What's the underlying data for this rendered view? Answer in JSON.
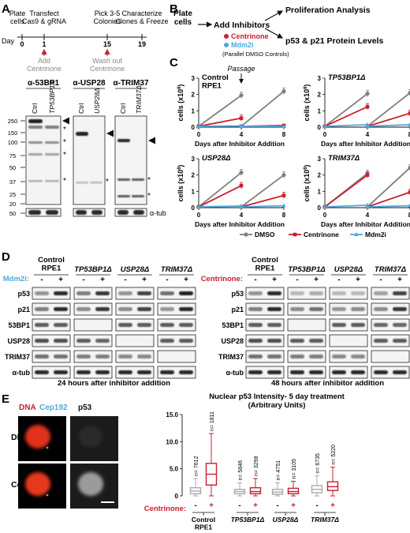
{
  "panels": {
    "A": {
      "letter": "A",
      "day_label": "Day",
      "timeline": [
        {
          "day": "0",
          "label": "Plate\ncells"
        },
        {
          "day": "1",
          "label": "Transfect\nCas9 & gRNA"
        },
        {
          "day": "15",
          "label": "Pick 3-5\nColonies"
        },
        {
          "day": "19",
          "label": "Characterize\nClones & Freeze"
        }
      ],
      "events": [
        {
          "day": "1",
          "label": "Add\nCentrinone"
        },
        {
          "day": "15",
          "label": "Wash out\nCentrinone"
        }
      ],
      "blots": [
        {
          "title": "α-53BP1",
          "lanes": [
            "Ctrl",
            "TP53BP1Δ"
          ]
        },
        {
          "title": "α-USP28",
          "lanes": [
            "Ctrl",
            "USP28Δ"
          ]
        },
        {
          "title": "α-TRIM37",
          "lanes": [
            "Ctrl",
            "TRIM37Δ"
          ]
        }
      ],
      "markers": [
        "250",
        "150",
        "100",
        "75",
        "50",
        "37",
        "25",
        "20",
        "50"
      ],
      "loading_label": "α-tub",
      "star": "*"
    },
    "B": {
      "letter": "B",
      "start": "Plate\ncells",
      "step": "Add Inhibitors",
      "legend": [
        {
          "label": "Centrinone",
          "color": "#c8202f"
        },
        {
          "label": "Mdm2i",
          "color": "#4fa8de"
        }
      ],
      "controls": "(Parallel DMSO Controls)",
      "outcomes": [
        "Proliferation Analysis",
        "p53 & p21 Protein Levels"
      ]
    },
    "C": {
      "letter": "C",
      "ylabel": "cells (x10",
      "ylabel_exp": "6",
      "ylabel_end": ")",
      "xlabel": "Days after Inhibitor Addition",
      "passage": "Passage",
      "legend": [
        {
          "label": "DMSO",
          "color": "#7f7f7f"
        },
        {
          "label": "Centrinone",
          "color": "#c8202f"
        },
        {
          "label": "Mdm2i",
          "color": "#4fa8de"
        }
      ]
    },
    "D": {
      "letter": "D",
      "left": {
        "treatment": "Mdm2i:",
        "treatment_color": "#4fa8de",
        "groups": [
          {
            "name": "Control\nRPE1",
            "italic": false
          },
          {
            "name": "TP53BP1Δ",
            "italic": true
          },
          {
            "name": "USP28Δ",
            "italic": true
          },
          {
            "name": "TRIM37Δ",
            "italic": true
          }
        ],
        "rows": [
          "p53",
          "p21",
          "53BP1",
          "USP28",
          "TRIM37",
          "α-tub"
        ],
        "caption": "24 hours after inhibitor addition"
      },
      "right": {
        "treatment": "Centrinone:",
        "treatment_color": "#c8202f",
        "groups": [
          {
            "name": "Control\nRPE1",
            "italic": false
          },
          {
            "name": "TP53BP1Δ",
            "italic": true
          },
          {
            "name": "USP28Δ",
            "italic": true
          },
          {
            "name": "TRIM37Δ",
            "italic": true
          }
        ],
        "rows": [
          "p53",
          "p21",
          "53BP1",
          "USP28",
          "TRIM37",
          "α-tub"
        ],
        "caption": "48 hours after inhibitor addition"
      },
      "signs": [
        "-",
        "+"
      ]
    },
    "E": {
      "letter": "E",
      "img_headers": [
        {
          "text": "DNA",
          "color": "#c8202f"
        },
        {
          "text": "Cep192",
          "color": "#4fa8de"
        },
        {
          "text": "p53",
          "color": "#111111"
        }
      ],
      "rows": [
        "DMSO",
        "Centrinone"
      ],
      "plot_title": "Nuclear p53 Intensity- 5 day treatment",
      "plot_subtitle": "(Arbitrary Units)",
      "treatment": "Centrinone:",
      "groups": [
        "Control\nRPE1",
        "TP53BP1Δ",
        "USP28Δ",
        "TRIM37Δ"
      ],
      "y_ticks": [
        "0",
        "5.0",
        "10.0",
        "15.0"
      ]
    }
  },
  "chart_data": [
    {
      "type": "line",
      "panel": "C",
      "title": "Control\nRPE1",
      "xlabel": "Days after Inhibitor Addition",
      "ylabel": "cells (x10^6)",
      "xlim": [
        0,
        8
      ],
      "ylim": [
        0,
        3
      ],
      "x_ticks": [
        0,
        4,
        8
      ],
      "y_ticks": [
        0,
        1,
        2,
        3
      ],
      "series": [
        {
          "name": "DMSO",
          "x": [
            0,
            4,
            4,
            8
          ],
          "y": [
            0.05,
            1.95,
            0.05,
            2.2
          ]
        },
        {
          "name": "Centrinone",
          "x": [
            0,
            4,
            4,
            8
          ],
          "y": [
            0.05,
            0.55,
            0.05,
            0.1
          ]
        },
        {
          "name": "Mdm2i",
          "x": [
            0,
            4,
            4,
            8
          ],
          "y": [
            0.05,
            0.07,
            0.05,
            0.05
          ]
        }
      ]
    },
    {
      "type": "line",
      "panel": "C",
      "title": "TP53BP1Δ",
      "xlabel": "Days after Inhibitor Addition",
      "ylabel": "cells (x10^6)",
      "xlim": [
        0,
        8
      ],
      "ylim": [
        0,
        3
      ],
      "x_ticks": [
        0,
        4,
        8
      ],
      "y_ticks": [
        0,
        1,
        2,
        3
      ],
      "series": [
        {
          "name": "DMSO",
          "x": [
            0,
            4,
            4,
            8
          ],
          "y": [
            0.05,
            2.05,
            0.05,
            2.1
          ]
        },
        {
          "name": "Centrinone",
          "x": [
            0,
            4,
            4,
            8
          ],
          "y": [
            0.05,
            1.25,
            0.05,
            0.85
          ]
        },
        {
          "name": "Mdm2i",
          "x": [
            0,
            4,
            4,
            8
          ],
          "y": [
            0.05,
            0.15,
            0.05,
            0.15
          ]
        }
      ]
    },
    {
      "type": "line",
      "panel": "C",
      "title": "USP28Δ",
      "xlabel": "Days after Inhibitor Addition",
      "ylabel": "cells (x10^6)",
      "xlim": [
        0,
        8
      ],
      "ylim": [
        0,
        3
      ],
      "x_ticks": [
        0,
        4,
        8
      ],
      "y_ticks": [
        0,
        1,
        2,
        3
      ],
      "series": [
        {
          "name": "DMSO",
          "x": [
            0,
            4,
            4,
            8
          ],
          "y": [
            0.05,
            2.15,
            0.05,
            2.0
          ]
        },
        {
          "name": "Centrinone",
          "x": [
            0,
            4,
            4,
            8
          ],
          "y": [
            0.05,
            1.35,
            0.05,
            0.75
          ]
        },
        {
          "name": "Mdm2i",
          "x": [
            0,
            4,
            4,
            8
          ],
          "y": [
            0.05,
            0.1,
            0.05,
            0.12
          ]
        }
      ]
    },
    {
      "type": "line",
      "panel": "C",
      "title": "TRIM37Δ",
      "xlabel": "Days after Inhibitor Addition",
      "ylabel": "cells (x10^6)",
      "xlim": [
        0,
        8
      ],
      "ylim": [
        0,
        3
      ],
      "x_ticks": [
        0,
        4,
        8
      ],
      "y_ticks": [
        0,
        1,
        2,
        3
      ],
      "series": [
        {
          "name": "DMSO",
          "x": [
            0,
            4,
            4,
            8
          ],
          "y": [
            0.05,
            2.1,
            0.05,
            2.45
          ]
        },
        {
          "name": "Centrinone",
          "x": [
            0,
            4,
            4,
            8
          ],
          "y": [
            0.05,
            2.0,
            0.05,
            0.95
          ]
        },
        {
          "name": "Mdm2i",
          "x": [
            0,
            4,
            4,
            8
          ],
          "y": [
            0.05,
            0.15,
            0.05,
            0.12
          ]
        }
      ]
    },
    {
      "type": "box",
      "panel": "E",
      "title": "Nuclear p53 Intensity- 5 day treatment",
      "subtitle": "(Arbitrary Units)",
      "ylim": [
        0,
        15
      ],
      "y_ticks": [
        "0",
        "5.0",
        "10.0",
        "15.0"
      ],
      "categories": [
        "Control RPE1",
        "TP53BP1Δ",
        "USP28Δ",
        "TRIM37Δ"
      ],
      "boxes": [
        {
          "group": "Control RPE1",
          "treatment": "-",
          "n": "n= 7612",
          "min": 0,
          "q1": 0.4,
          "median": 0.9,
          "q3": 1.5,
          "max": 3.2
        },
        {
          "group": "Control RPE1",
          "treatment": "+",
          "n": "n= 1811",
          "min": 0,
          "q1": 2.0,
          "median": 4.0,
          "q3": 6.0,
          "max": 11.5
        },
        {
          "group": "TP53BP1Δ",
          "treatment": "-",
          "n": "n= 5846",
          "min": 0,
          "q1": 0.4,
          "median": 0.8,
          "q3": 1.2,
          "max": 2.4
        },
        {
          "group": "TP53BP1Δ",
          "treatment": "+",
          "n": "n= 3298",
          "min": 0,
          "q1": 0.4,
          "median": 0.8,
          "q3": 1.5,
          "max": 3.2
        },
        {
          "group": "USP28Δ",
          "treatment": "-",
          "n": "n= 4751",
          "min": 0,
          "q1": 0.3,
          "median": 0.7,
          "q3": 1.2,
          "max": 2.4
        },
        {
          "group": "USP28Δ",
          "treatment": "+",
          "n": "n= 3105",
          "min": 0,
          "q1": 0.4,
          "median": 0.8,
          "q3": 1.4,
          "max": 2.7
        },
        {
          "group": "TRIM37Δ",
          "treatment": "-",
          "n": "n= 6735",
          "min": 0,
          "q1": 0.6,
          "median": 1.2,
          "q3": 1.9,
          "max": 3.7
        },
        {
          "group": "TRIM37Δ",
          "treatment": "+",
          "n": "n= 5220",
          "min": 0,
          "q1": 1.0,
          "median": 1.7,
          "q3": 2.6,
          "max": 5.3
        }
      ]
    }
  ]
}
